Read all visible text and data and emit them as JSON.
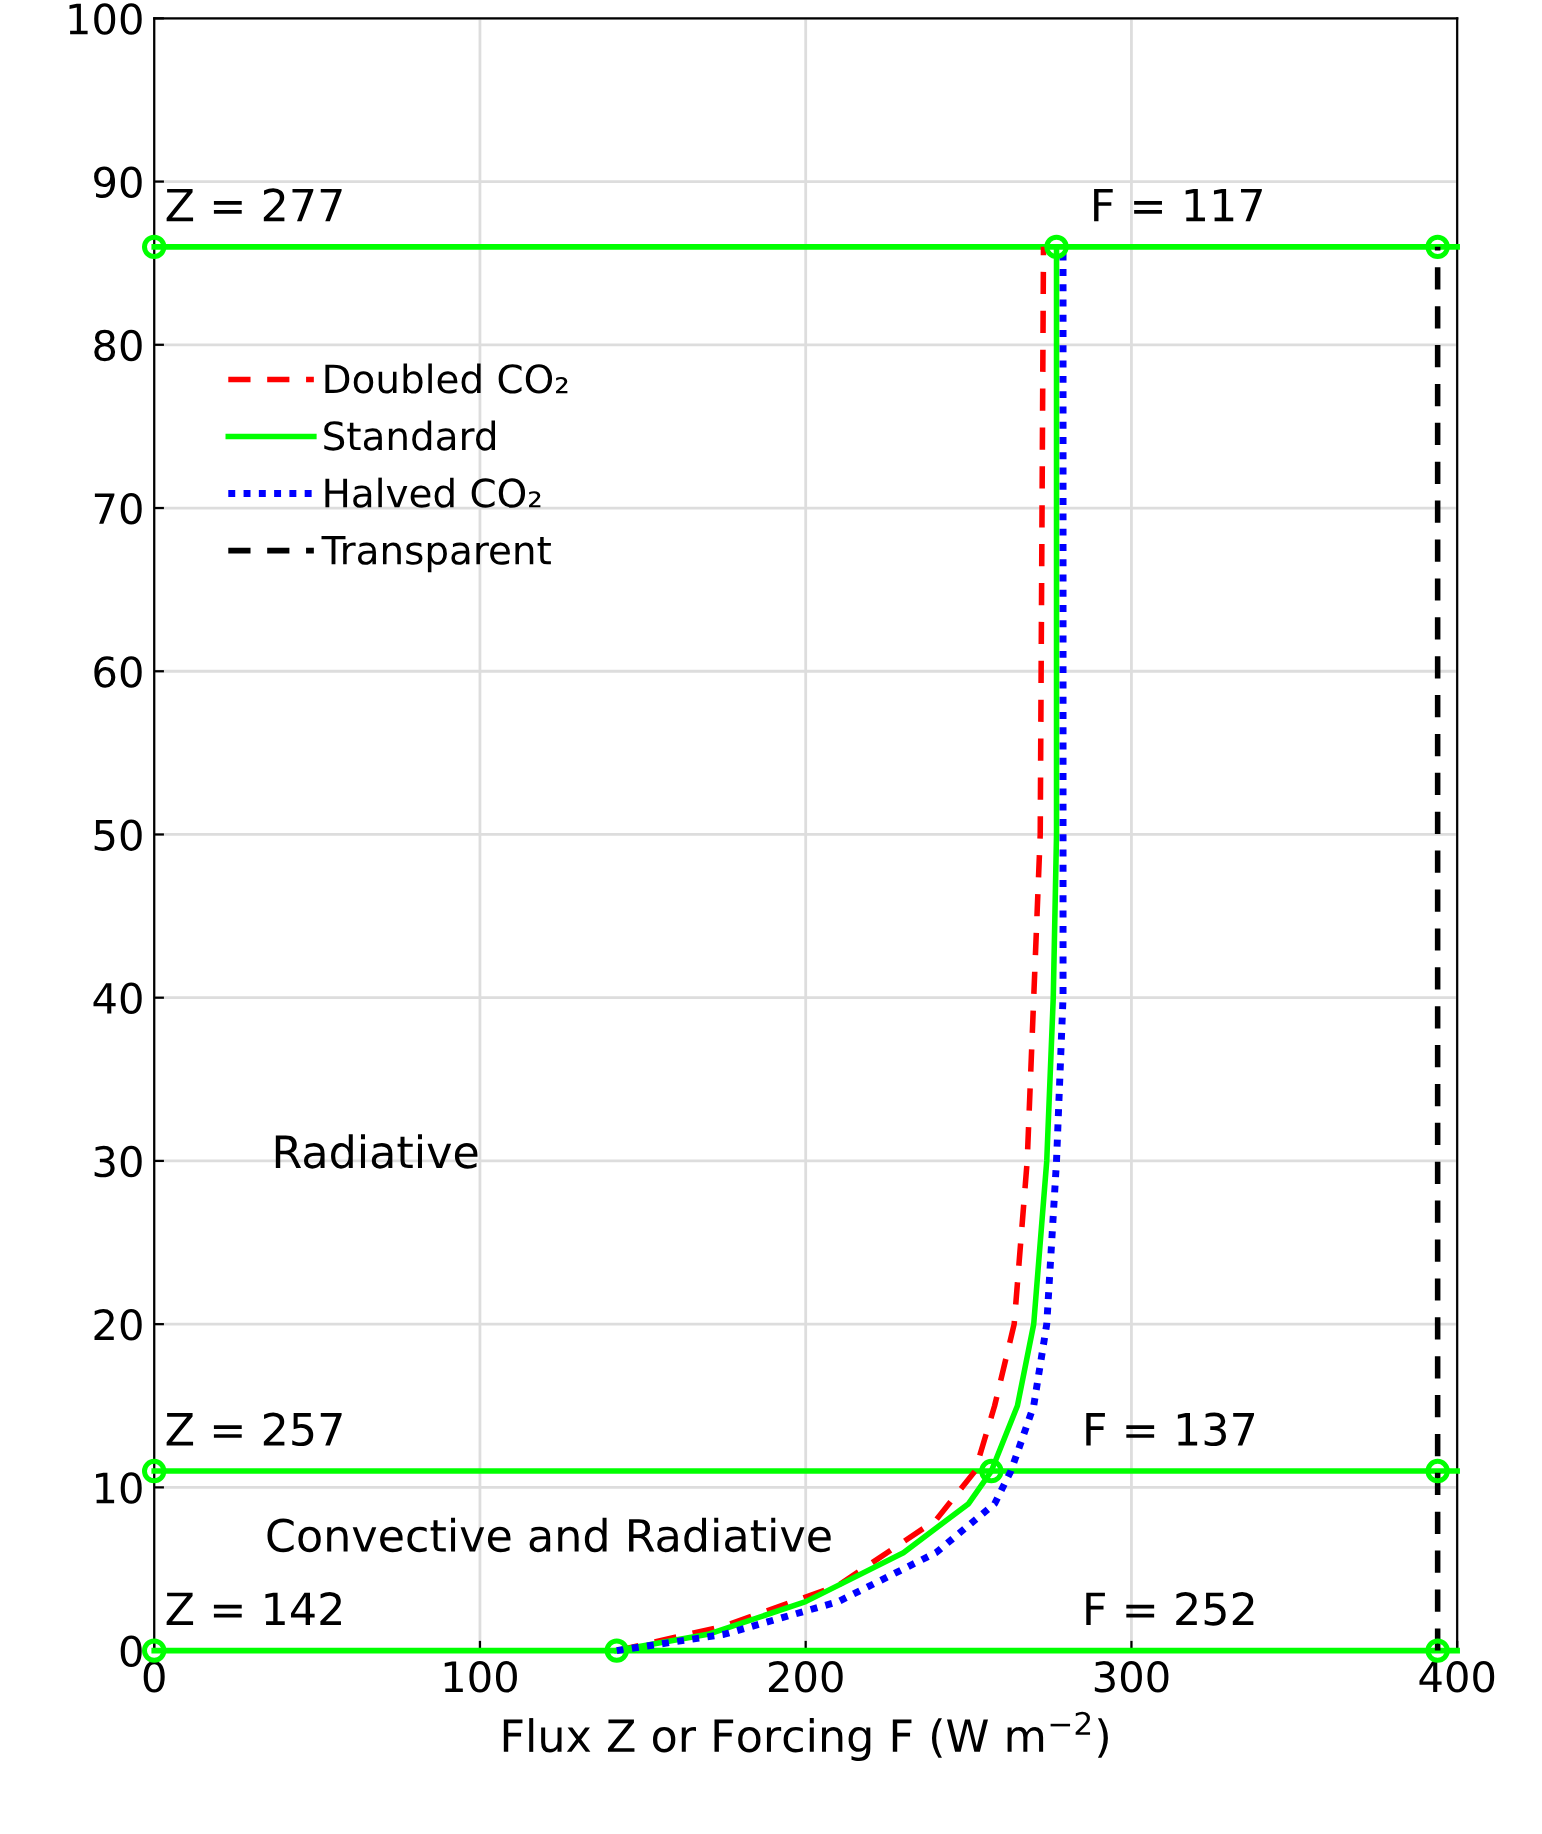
{
  "chart_data": {
    "type": "line",
    "xlabel": "Flux Z or Forcing F (W m$^{−2}$)",
    "xlim": [
      0,
      400
    ],
    "ylim": [
      0,
      100
    ],
    "xticks": [
      0,
      100,
      200,
      300,
      400
    ],
    "yticks": [
      0,
      10,
      20,
      30,
      40,
      50,
      60,
      70,
      80,
      90,
      100
    ],
    "grid": true,
    "legend": "top left",
    "series": [
      {
        "name": "Doubled CO₂",
        "color": "#ff0000",
        "line_style": "dashed",
        "marker": "none",
        "x": [
          142,
          175,
          210,
          240,
          252,
          258,
          264,
          268,
          270,
          272,
          273
        ],
        "values": [
          0,
          1.5,
          4,
          8,
          11,
          15,
          20,
          30,
          40,
          50,
          86
        ]
      },
      {
        "name": "Standard",
        "color": "#00ff00",
        "line_style": "solid",
        "marker": "none",
        "x": [
          142,
          170,
          200,
          230,
          250,
          257,
          265,
          270,
          274,
          276,
          277,
          277
        ],
        "values": [
          0,
          1,
          3,
          6,
          9,
          11,
          15,
          20,
          30,
          40,
          50,
          86
        ]
      },
      {
        "name": "Halved CO₂",
        "color": "#0000ff",
        "line_style": "dotted",
        "marker": "none",
        "x": [
          142,
          175,
          210,
          240,
          258,
          263,
          270,
          274,
          277,
          279,
          279,
          279
        ],
        "values": [
          0,
          1,
          3,
          6,
          9,
          11,
          15,
          20,
          30,
          40,
          50,
          86
        ]
      },
      {
        "name": "Transparent",
        "color": "#000000",
        "line_style": "dashed",
        "marker": "none",
        "x": [
          394,
          394
        ],
        "values": [
          0,
          86
        ]
      },
      {
        "type": "scatter",
        "color": "#00ff00",
        "marker": "circle",
        "x": [
          0,
          277,
          394,
          0,
          257,
          394,
          0,
          142,
          394
        ],
        "values": [
          86,
          86,
          86,
          11,
          11,
          11,
          0,
          0,
          0
        ]
      }
    ],
    "ref_lines": [
      {
        "axis": "y",
        "value": 86,
        "color": "#00ff00"
      },
      {
        "axis": "y",
        "value": 11,
        "color": "#00ff00"
      },
      {
        "axis": "y",
        "value": 0,
        "color": "#00ff00"
      }
    ],
    "annotations": [
      "Z = 277",
      "F = 117",
      "Z = 257",
      "F = 137",
      "Z = 142",
      "F = 252",
      "Radiative",
      "Convective and Radiative"
    ]
  }
}
